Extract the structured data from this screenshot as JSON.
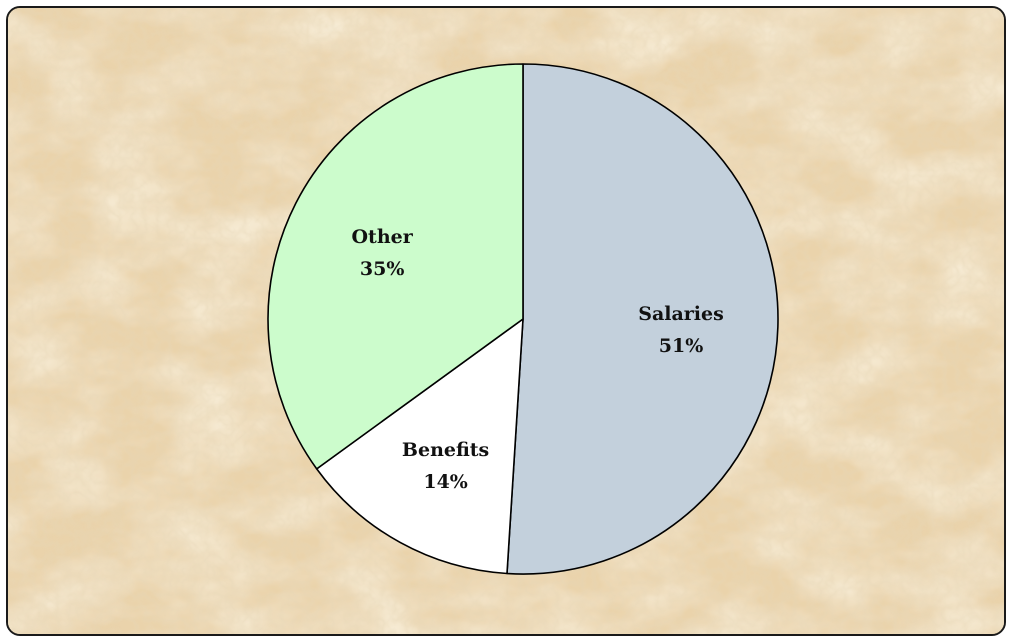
{
  "chart_data": {
    "type": "pie",
    "start_angle_deg": 0,
    "direction": "clockwise",
    "slices": [
      {
        "label": "Salaries",
        "value": 51,
        "value_label": "51%",
        "color": "#c3d0dc"
      },
      {
        "label": "Benefits",
        "value": 14,
        "value_label": "14%",
        "color": "#ffffff"
      },
      {
        "label": "Other",
        "value": 35,
        "value_label": "35%",
        "color": "#ccfccc"
      }
    ],
    "outline_color": "#000000",
    "background_color": "#ead3ab"
  }
}
